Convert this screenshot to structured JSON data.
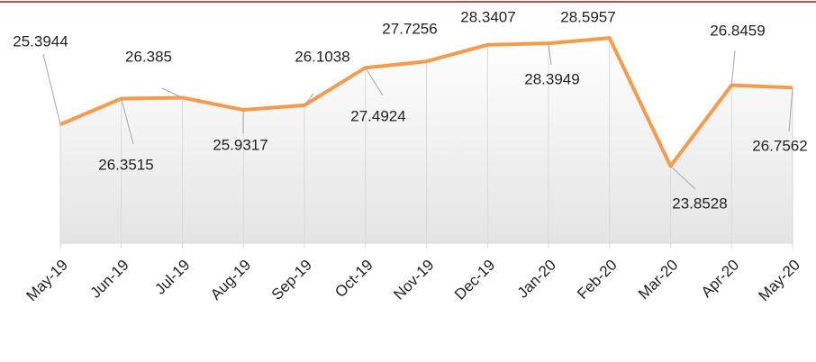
{
  "chart_data": {
    "type": "line",
    "categories": [
      "May-19",
      "Jun-19",
      "Jul-19",
      "Aug-19",
      "Sep-19",
      "Oct-19",
      "Nov-19",
      "Dec-19",
      "Jan-20",
      "Feb-20",
      "Mar-20",
      "Apr-20",
      "May-20"
    ],
    "values": [
      25.3944,
      26.3515,
      26.385,
      25.9317,
      26.1038,
      27.4924,
      27.7256,
      28.3407,
      28.3949,
      28.5957,
      23.8528,
      26.8459,
      26.7562
    ],
    "color": "#f79a4a",
    "ylim": [
      21,
      30
    ],
    "grid": true
  }
}
